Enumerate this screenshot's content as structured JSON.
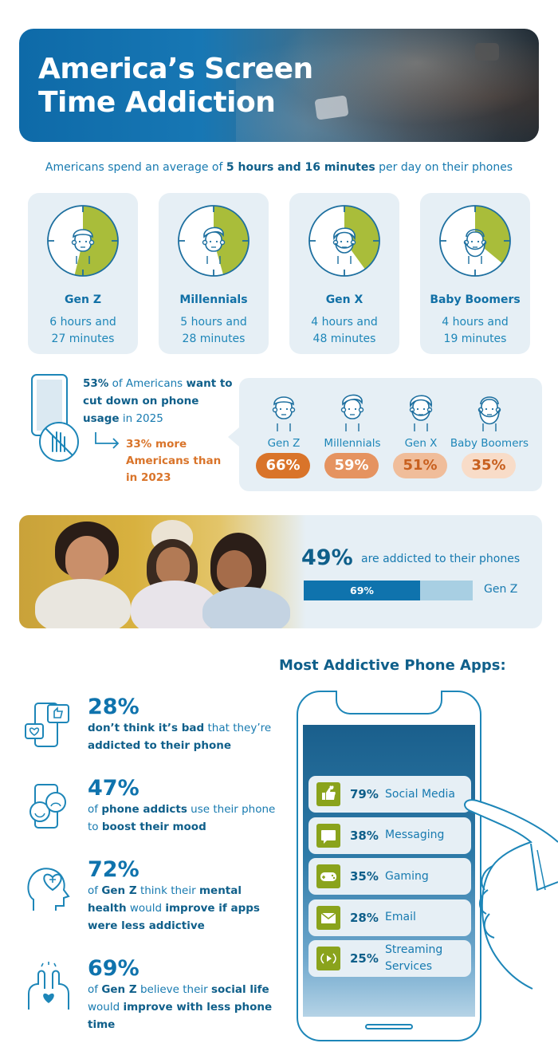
{
  "hero": {
    "title_line1": "America’s Screen",
    "title_line2": "Time Addiction"
  },
  "average": {
    "prefix": "Americans spend an average of ",
    "bold": "5 hours and 16 minutes",
    "suffix": " per day on their phones"
  },
  "generations": [
    {
      "name": "Gen Z",
      "time_line1": "6 hours and",
      "time_line2": "27 minutes",
      "fraction_of_12h": 0.538
    },
    {
      "name": "Millennials",
      "time_line1": "5 hours and",
      "time_line2": "28 minutes",
      "fraction_of_12h": 0.456
    },
    {
      "name": "Gen X",
      "time_line1": "4 hours and",
      "time_line2": "48 minutes",
      "fraction_of_12h": 0.4
    },
    {
      "name": "Baby Boomers",
      "time_line1": "4 hours and",
      "time_line2": "19 minutes",
      "fraction_of_12h": 0.36
    }
  ],
  "cut_down": {
    "pct": "53%",
    "text1": " of Americans ",
    "bold1": "want to cut down on phone usage",
    "text2": " in 2025",
    "more": "33% more Americans than in 2023",
    "groups": [
      {
        "name": "Gen Z",
        "value": "66%",
        "color": "#d9742a",
        "text_color": "#ffffff"
      },
      {
        "name": "Millennials",
        "value": "59%",
        "color": "#e59360",
        "text_color": "#ffffff"
      },
      {
        "name": "Gen X",
        "value": "51%",
        "color": "#f0bd9a",
        "text_color": "#c8601f"
      },
      {
        "name": "Baby Boomers",
        "value": "35%",
        "color": "#f8dcc8",
        "text_color": "#c8601f"
      }
    ]
  },
  "addicted": {
    "pct": "49%",
    "label": "are addicted to their phones",
    "bar_value": "69%",
    "bar_fraction": 0.69,
    "bar_label": "Gen Z"
  },
  "stats": [
    {
      "big": "28%",
      "icon": "social-likes-icon",
      "parts": [
        [
          "b",
          "don’t think it’s bad"
        ],
        [
          "t",
          " that they’re "
        ],
        [
          "b",
          "addicted to their phone"
        ]
      ]
    },
    {
      "big": "47%",
      "icon": "mood-faces-icon",
      "parts": [
        [
          "t",
          "of "
        ],
        [
          "b",
          "phone addicts"
        ],
        [
          "t",
          " use their phone to "
        ],
        [
          "b",
          "boost their mood"
        ]
      ]
    },
    {
      "big": "72%",
      "icon": "mental-health-icon",
      "parts": [
        [
          "t",
          "of "
        ],
        [
          "b",
          "Gen Z"
        ],
        [
          "t",
          " think their "
        ],
        [
          "b",
          "mental health"
        ],
        [
          "t",
          " would "
        ],
        [
          "b",
          "improve if apps were less addictive"
        ]
      ]
    },
    {
      "big": "69%",
      "icon": "social-life-icon",
      "parts": [
        [
          "t",
          "of "
        ],
        [
          "b",
          "Gen Z"
        ],
        [
          "t",
          " believe their "
        ],
        [
          "b",
          "social life"
        ],
        [
          "t",
          " would "
        ],
        [
          "b",
          "improve with less phone time"
        ]
      ]
    }
  ],
  "apps": {
    "title": "Most Addictive Phone Apps:",
    "items": [
      {
        "pct": "79%",
        "name": "Social Media",
        "icon": "thumbs-up-icon"
      },
      {
        "pct": "38%",
        "name": "Messaging",
        "icon": "message-icon"
      },
      {
        "pct": "35%",
        "name": "Gaming",
        "icon": "gamepad-icon"
      },
      {
        "pct": "28%",
        "name": "Email",
        "icon": "envelope-icon"
      },
      {
        "pct": "25%",
        "name": "Streaming Services",
        "icon": "streaming-icon"
      }
    ]
  },
  "colors": {
    "primary": "#0f5f8a",
    "accent_green": "#a9bd3a",
    "accent_orange": "#d9742a",
    "panel": "#e6eff5"
  }
}
